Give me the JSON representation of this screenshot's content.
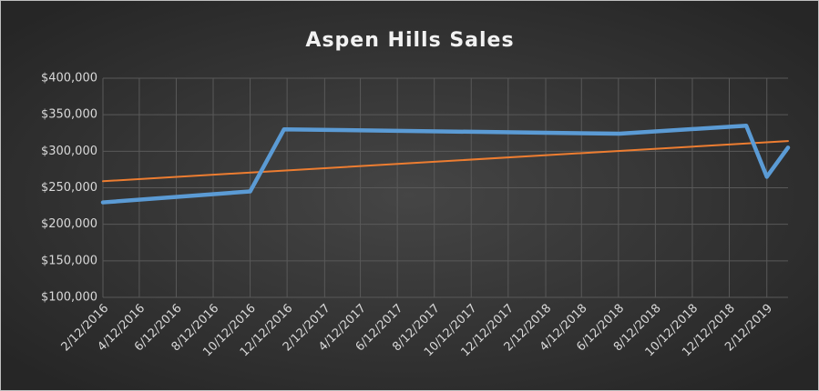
{
  "chart_data": {
    "type": "line",
    "title": "Aspen Hills Sales",
    "series": [
      {
        "color": "#5b9bd5",
        "x": [
          "2/12/2016",
          "10/12/2016",
          "12/7/2016",
          "6/14/2018",
          "1/9/2019",
          "2/12/2019",
          "3/19/2019"
        ],
        "values": [
          230000,
          245000,
          330000,
          324000,
          335000,
          265000,
          305000
        ]
      },
      {
        "color": "#ed7d31",
        "x": [
          "2/12/2016",
          "3/19/2019"
        ],
        "values": [
          259000,
          314000
        ]
      }
    ],
    "xlim": [
      "2/12/2016",
      "3/19/2019"
    ],
    "xticks": [
      "2/12/2016",
      "4/12/2016",
      "6/12/2016",
      "8/12/2016",
      "10/12/2016",
      "12/12/2016",
      "2/12/2017",
      "4/12/2017",
      "6/12/2017",
      "8/12/2017",
      "10/12/2017",
      "12/12/2017",
      "2/12/2018",
      "4/12/2018",
      "6/12/2018",
      "8/12/2018",
      "10/12/2018",
      "12/12/2018",
      "2/12/2019"
    ],
    "ylim": [
      100000,
      400000
    ],
    "yticks": [
      {
        "value": 100000,
        "label": "$100,000"
      },
      {
        "value": 150000,
        "label": "$150,000"
      },
      {
        "value": 200000,
        "label": "$200,000"
      },
      {
        "value": 250000,
        "label": "$250,000"
      },
      {
        "value": 300000,
        "label": "$300,000"
      },
      {
        "value": 350000,
        "label": "$350,000"
      },
      {
        "value": 400000,
        "label": "$400,000"
      }
    ],
    "grid": true
  }
}
